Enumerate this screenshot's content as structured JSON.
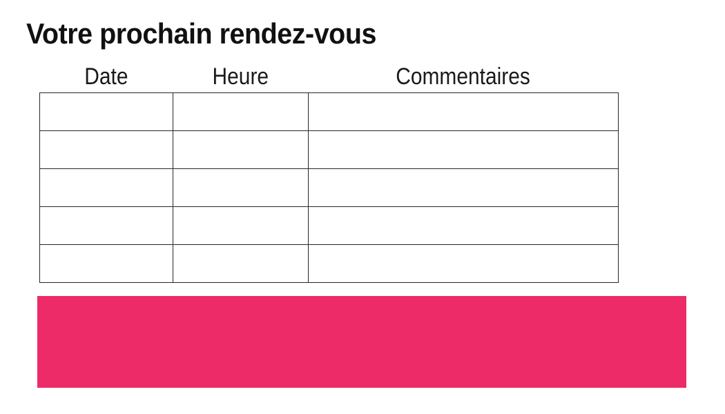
{
  "page": {
    "title": "Votre prochain rendez-vous"
  },
  "table": {
    "column_headers": [
      "Date",
      "Heure",
      "Commentaires"
    ],
    "rows": [
      [
        "",
        "",
        ""
      ],
      [
        "",
        "",
        ""
      ],
      [
        "",
        "",
        ""
      ],
      [
        "",
        "",
        ""
      ],
      [
        "",
        "",
        ""
      ]
    ]
  },
  "colors": {
    "accent_bar": "#ED2B68",
    "table_border": "#262626",
    "text": "#1A1A1A"
  }
}
